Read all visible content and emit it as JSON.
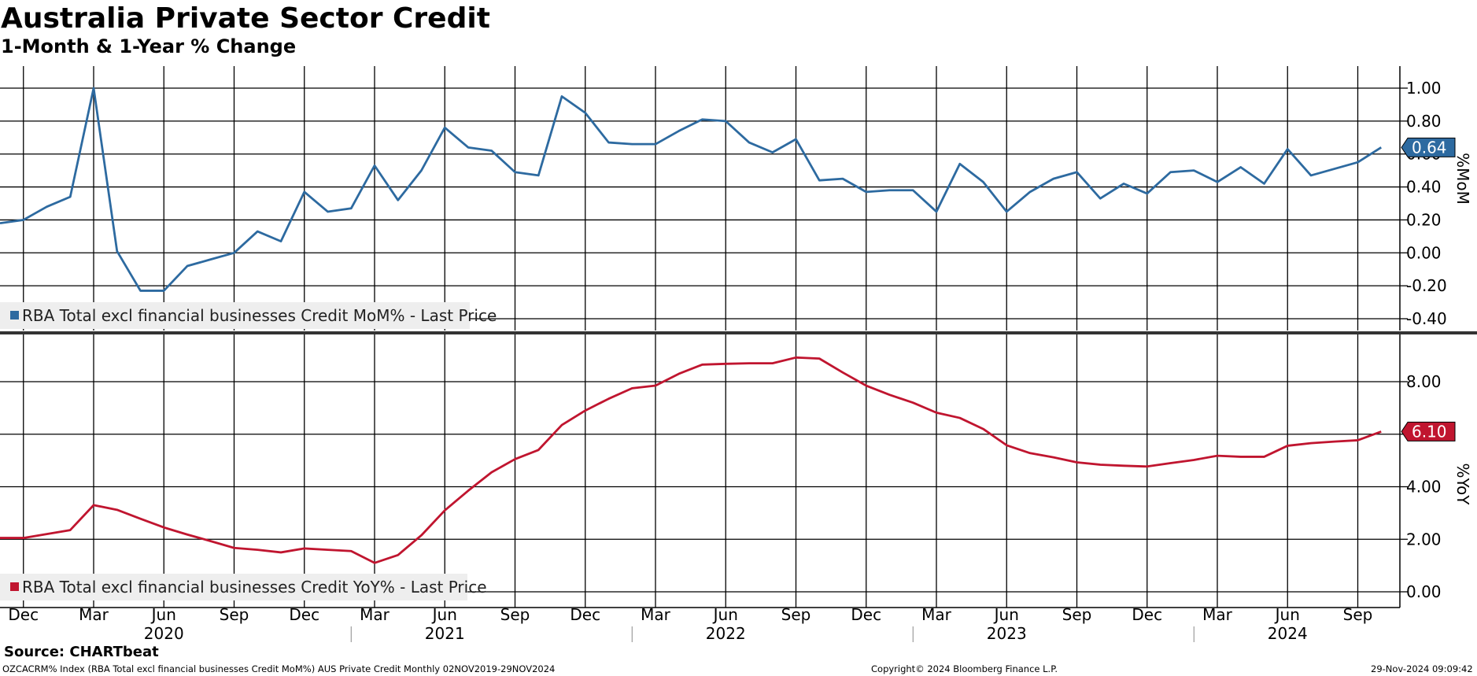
{
  "header": {
    "title": "Australia Private Sector Credit",
    "subtitle": "1-Month & 1-Year % Change"
  },
  "footer": {
    "source": "Source: CHARTbeat",
    "index_note": "OZCACRM% Index (RBA Total excl financial businesses Credit MoM%) AUS Private Credit  Monthly 02NOV2019-29NOV2024",
    "copyright": "Copyright© 2024 Bloomberg Finance L.P.",
    "timestamp": "29-Nov-2024 09:09:42"
  },
  "colors": {
    "mom": "#2d6aa0",
    "yoy": "#c0152f",
    "grid": "#000000",
    "legend_bg": "#eeeeee"
  },
  "chart_data": {
    "type": "line",
    "x": [
      "2019-11",
      "2019-12",
      "2020-01",
      "2020-02",
      "2020-03",
      "2020-04",
      "2020-05",
      "2020-06",
      "2020-07",
      "2020-08",
      "2020-09",
      "2020-10",
      "2020-11",
      "2020-12",
      "2021-01",
      "2021-02",
      "2021-03",
      "2021-04",
      "2021-05",
      "2021-06",
      "2021-07",
      "2021-08",
      "2021-09",
      "2021-10",
      "2021-11",
      "2021-12",
      "2022-01",
      "2022-02",
      "2022-03",
      "2022-04",
      "2022-05",
      "2022-06",
      "2022-07",
      "2022-08",
      "2022-09",
      "2022-10",
      "2022-11",
      "2022-12",
      "2023-01",
      "2023-02",
      "2023-03",
      "2023-04",
      "2023-05",
      "2023-06",
      "2023-07",
      "2023-08",
      "2023-09",
      "2023-10",
      "2023-11",
      "2023-12",
      "2024-01",
      "2024-02",
      "2024-03",
      "2024-04",
      "2024-05",
      "2024-06",
      "2024-07",
      "2024-08",
      "2024-09",
      "2024-10"
    ],
    "x_tick_labels": [
      "Dec",
      "Mar",
      "Jun",
      "Sep",
      "Dec",
      "Mar",
      "Jun",
      "Sep",
      "Dec",
      "Mar",
      "Jun",
      "Sep",
      "Dec",
      "Mar",
      "Jun",
      "Sep",
      "Dec",
      "Mar",
      "Jun",
      "Sep"
    ],
    "year_labels": [
      "2020",
      "2021",
      "2022",
      "2023",
      "2024"
    ],
    "panels": [
      {
        "id": "mom",
        "ylabel": "%MoM",
        "ylim": [
          -0.45,
          1.13
        ],
        "yticks": [
          -0.4,
          -0.2,
          0.0,
          0.2,
          0.4,
          0.6,
          0.8,
          1.0
        ],
        "ytick_labels": [
          "-0.40",
          "-0.20",
          "0.00",
          "0.20",
          "0.40",
          "0.60",
          "0.80",
          "1.00"
        ],
        "legend": "RBA Total excl financial businesses Credit MoM% - Last Price",
        "last_value_label": "0.64",
        "series": [
          {
            "name": "RBA Total excl financial businesses Credit MoM%",
            "values": [
              0.18,
              0.2,
              0.28,
              0.34,
              1.0,
              0.01,
              -0.23,
              -0.23,
              -0.08,
              -0.04,
              0.0,
              0.13,
              0.07,
              0.37,
              0.25,
              0.27,
              0.53,
              0.32,
              0.5,
              0.76,
              0.64,
              0.62,
              0.49,
              0.47,
              0.95,
              0.85,
              0.67,
              0.66,
              0.66,
              0.74,
              0.81,
              0.8,
              0.67,
              0.61,
              0.69,
              0.44,
              0.45,
              0.37,
              0.38,
              0.38,
              0.25,
              0.54,
              0.43,
              0.25,
              0.37,
              0.45,
              0.49,
              0.33,
              0.42,
              0.36,
              0.49,
              0.5,
              0.43,
              0.52,
              0.42,
              0.63,
              0.47,
              0.51,
              0.55,
              0.64
            ]
          }
        ]
      },
      {
        "id": "yoy",
        "ylabel": "%YoY",
        "ylim": [
          -0.3,
          9.6
        ],
        "yticks": [
          0,
          2,
          4,
          6,
          8
        ],
        "ytick_labels": [
          "0.00",
          "2.00",
          "4.00",
          "6.00",
          "8.00"
        ],
        "legend": "RBA Total excl financial businesses Credit YoY% - Last Price",
        "last_value_label": "6.10",
        "series": [
          {
            "name": "RBA Total excl financial businesses Credit YoY%",
            "values": [
              2.05,
              2.05,
              2.2,
              2.35,
              3.3,
              3.12,
              2.78,
              2.45,
              2.18,
              1.93,
              1.67,
              1.6,
              1.5,
              1.65,
              1.6,
              1.55,
              1.1,
              1.4,
              2.15,
              3.1,
              3.85,
              4.55,
              5.05,
              5.4,
              6.35,
              6.9,
              7.35,
              7.75,
              7.85,
              8.3,
              8.65,
              8.68,
              8.7,
              8.7,
              8.92,
              8.88,
              8.35,
              7.85,
              7.5,
              7.2,
              6.82,
              6.62,
              6.2,
              5.58,
              5.28,
              5.12,
              4.93,
              4.84,
              4.8,
              4.77,
              4.9,
              5.02,
              5.18,
              5.14,
              5.14,
              5.56,
              5.66,
              5.72,
              5.77,
              6.1
            ]
          }
        ]
      }
    ]
  }
}
